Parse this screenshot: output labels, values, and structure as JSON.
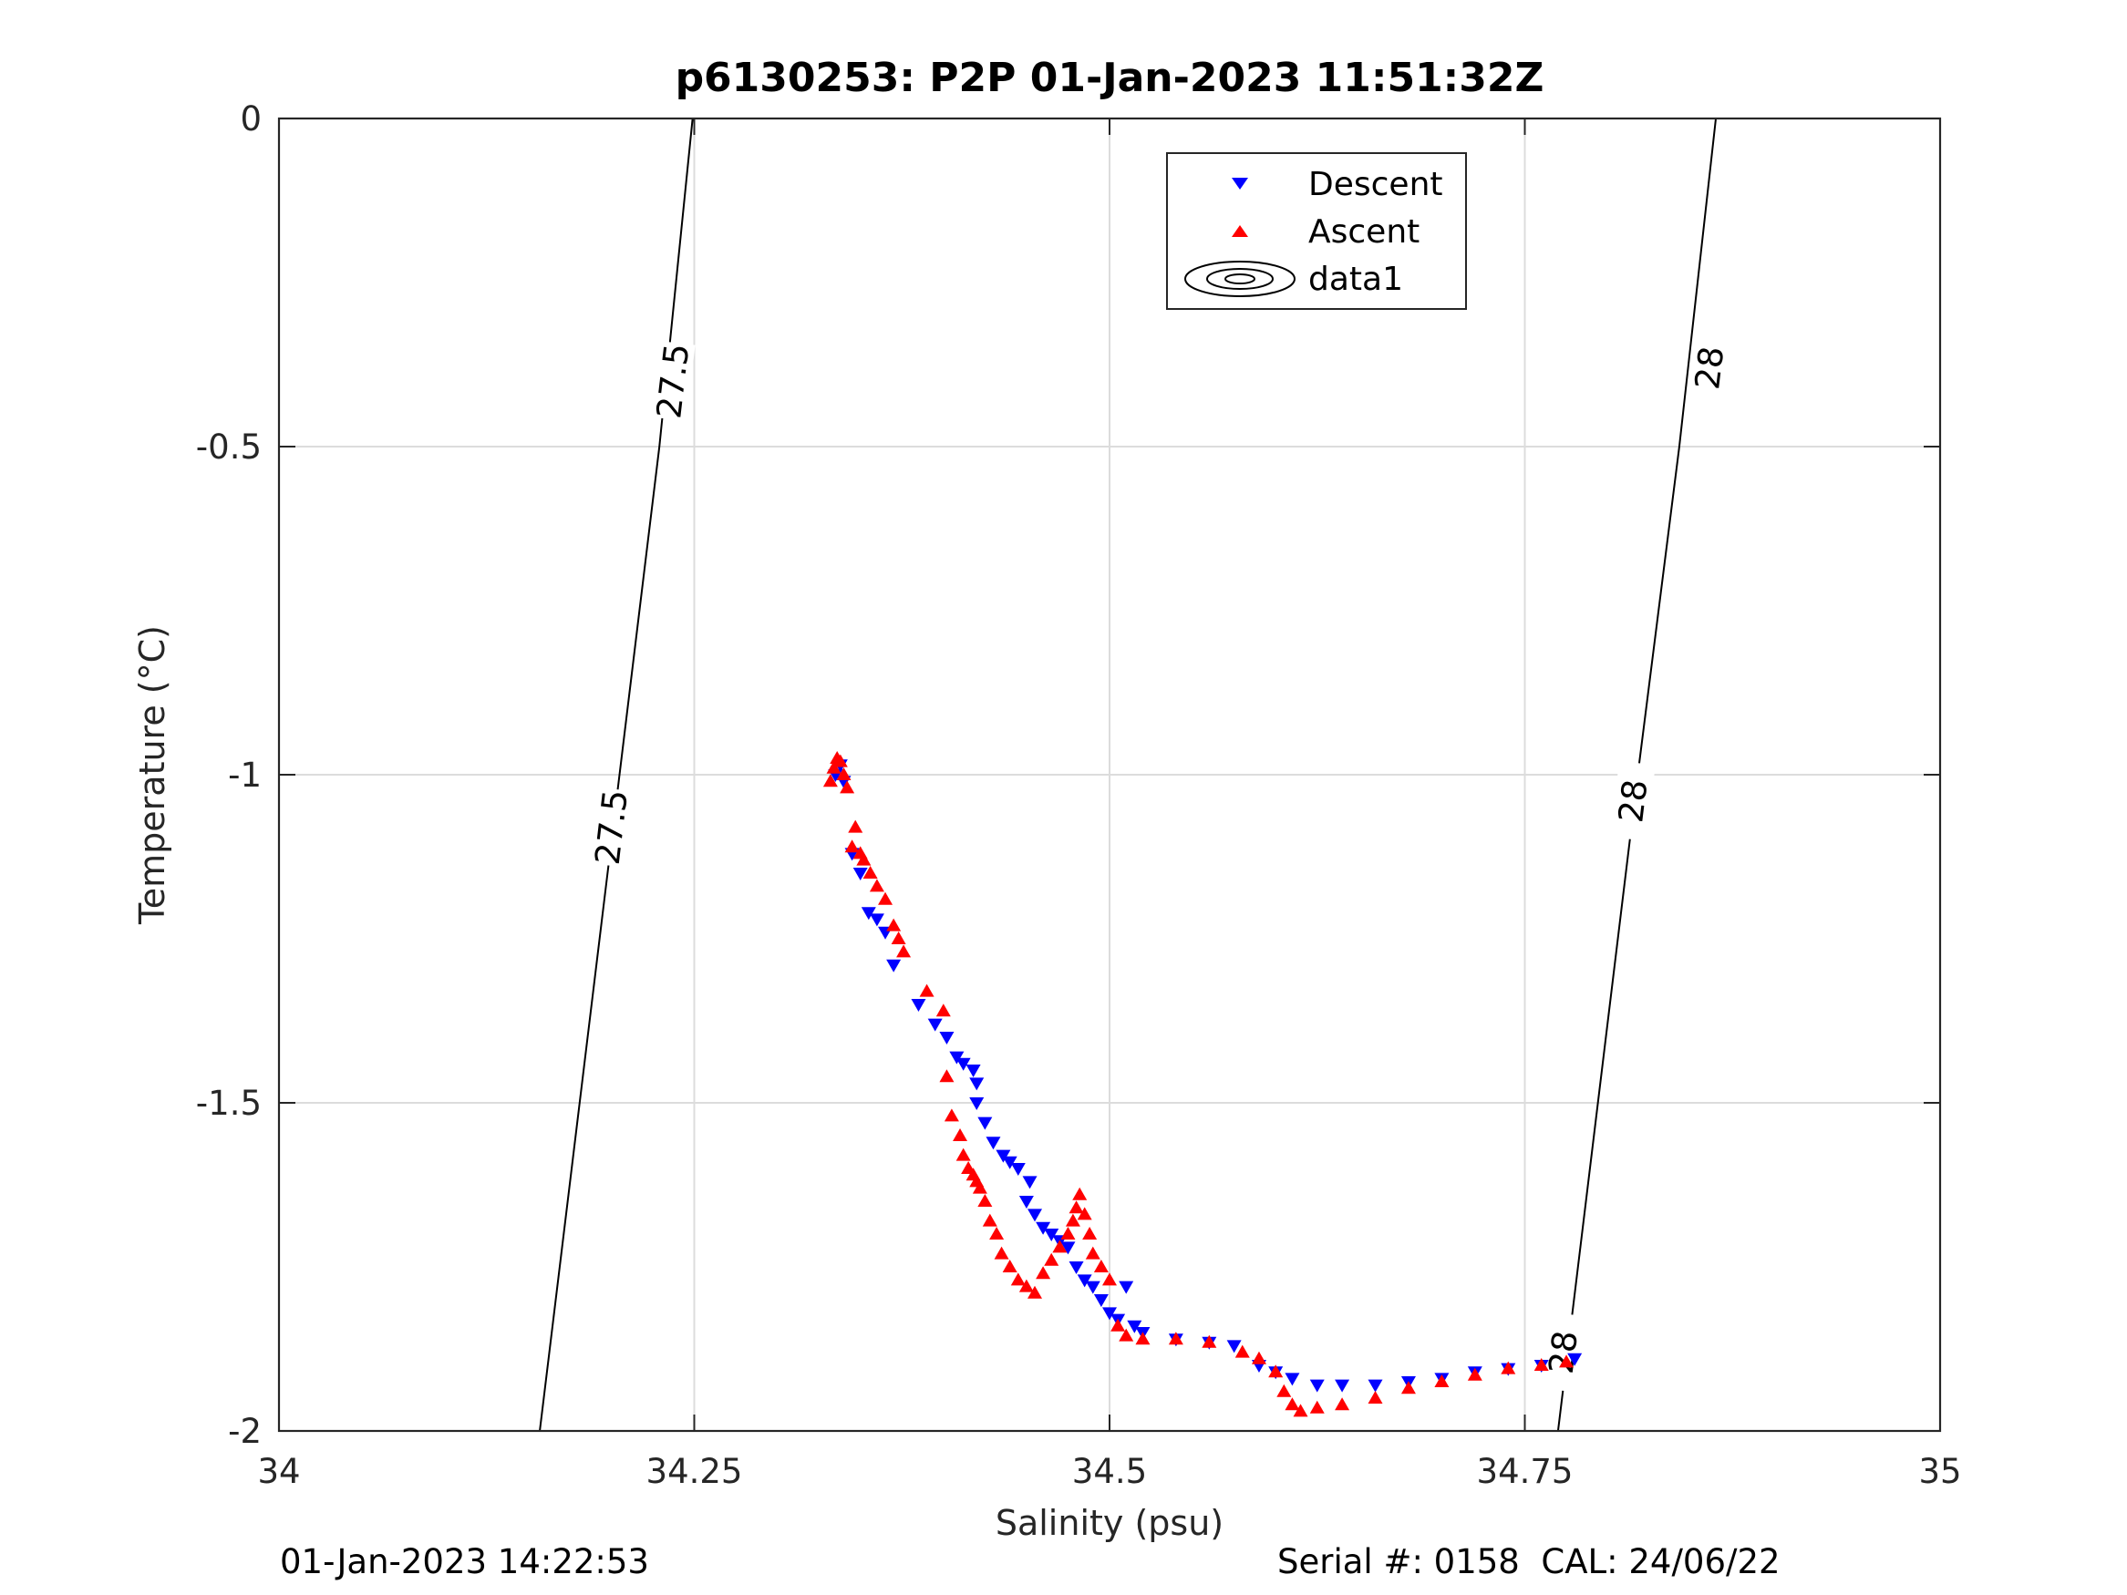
{
  "chart_data": {
    "type": "scatter",
    "title": "p6130253: P2P 01-Jan-2023 11:51:32Z",
    "xlabel": "Salinity (psu)",
    "ylabel": "Temperature (°C)",
    "xlim": [
      34,
      35
    ],
    "ylim": [
      -2,
      0
    ],
    "x_ticks": [
      34,
      34.25,
      34.5,
      34.75,
      35
    ],
    "x_tick_labels": [
      "34",
      "34.25",
      "34.5",
      "34.75",
      "35"
    ],
    "y_ticks": [
      0,
      -0.5,
      -1,
      -1.5,
      -2
    ],
    "y_tick_labels": [
      "0",
      "-0.5",
      "-1",
      "-1.5",
      "-2"
    ],
    "grid": true,
    "legend_position": "top-center",
    "legend": [
      "Descent",
      "Ascent",
      "data1"
    ],
    "series": [
      {
        "name": "Descent",
        "marker": "triangle-down",
        "color": "#0000ff",
        "points": [
          [
            34.335,
            -1.0
          ],
          [
            34.338,
            -0.985
          ],
          [
            34.34,
            -1.01
          ],
          [
            34.345,
            -1.12
          ],
          [
            34.35,
            -1.15
          ],
          [
            34.355,
            -1.21
          ],
          [
            34.36,
            -1.22
          ],
          [
            34.365,
            -1.24
          ],
          [
            34.37,
            -1.29
          ],
          [
            34.385,
            -1.35
          ],
          [
            34.395,
            -1.38
          ],
          [
            34.402,
            -1.4
          ],
          [
            34.408,
            -1.43
          ],
          [
            34.412,
            -1.44
          ],
          [
            34.418,
            -1.45
          ],
          [
            34.42,
            -1.47
          ],
          [
            34.42,
            -1.5
          ],
          [
            34.425,
            -1.53
          ],
          [
            34.43,
            -1.56
          ],
          [
            34.436,
            -1.58
          ],
          [
            34.44,
            -1.59
          ],
          [
            34.445,
            -1.6
          ],
          [
            34.452,
            -1.62
          ],
          [
            34.45,
            -1.65
          ],
          [
            34.455,
            -1.67
          ],
          [
            34.46,
            -1.69
          ],
          [
            34.465,
            -1.7
          ],
          [
            34.47,
            -1.71
          ],
          [
            34.475,
            -1.72
          ],
          [
            34.48,
            -1.75
          ],
          [
            34.485,
            -1.77
          ],
          [
            34.49,
            -1.78
          ],
          [
            34.495,
            -1.8
          ],
          [
            34.5,
            -1.82
          ],
          [
            34.505,
            -1.83
          ],
          [
            34.51,
            -1.78
          ],
          [
            34.515,
            -1.84
          ],
          [
            34.52,
            -1.85
          ],
          [
            34.54,
            -1.86
          ],
          [
            34.56,
            -1.865
          ],
          [
            34.575,
            -1.87
          ],
          [
            34.59,
            -1.9
          ],
          [
            34.6,
            -1.91
          ],
          [
            34.61,
            -1.92
          ],
          [
            34.625,
            -1.93
          ],
          [
            34.64,
            -1.93
          ],
          [
            34.66,
            -1.93
          ],
          [
            34.68,
            -1.925
          ],
          [
            34.7,
            -1.92
          ],
          [
            34.72,
            -1.91
          ],
          [
            34.74,
            -1.905
          ],
          [
            34.76,
            -1.9
          ],
          [
            34.78,
            -1.89
          ]
        ]
      },
      {
        "name": "Ascent",
        "marker": "triangle-up",
        "color": "#ff0000",
        "points": [
          [
            34.332,
            -1.01
          ],
          [
            34.334,
            -0.99
          ],
          [
            34.336,
            -0.975
          ],
          [
            34.338,
            -0.98
          ],
          [
            34.34,
            -1.0
          ],
          [
            34.342,
            -1.02
          ],
          [
            34.345,
            -1.11
          ],
          [
            34.347,
            -1.08
          ],
          [
            34.35,
            -1.12
          ],
          [
            34.352,
            -1.13
          ],
          [
            34.356,
            -1.15
          ],
          [
            34.36,
            -1.17
          ],
          [
            34.365,
            -1.19
          ],
          [
            34.37,
            -1.23
          ],
          [
            34.373,
            -1.25
          ],
          [
            34.376,
            -1.27
          ],
          [
            34.39,
            -1.33
          ],
          [
            34.4,
            -1.36
          ],
          [
            34.402,
            -1.46
          ],
          [
            34.405,
            -1.52
          ],
          [
            34.41,
            -1.55
          ],
          [
            34.412,
            -1.58
          ],
          [
            34.415,
            -1.6
          ],
          [
            34.418,
            -1.61
          ],
          [
            34.42,
            -1.62
          ],
          [
            34.422,
            -1.63
          ],
          [
            34.425,
            -1.65
          ],
          [
            34.428,
            -1.68
          ],
          [
            34.432,
            -1.7
          ],
          [
            34.435,
            -1.73
          ],
          [
            34.44,
            -1.75
          ],
          [
            34.445,
            -1.77
          ],
          [
            34.45,
            -1.78
          ],
          [
            34.455,
            -1.79
          ],
          [
            34.46,
            -1.76
          ],
          [
            34.465,
            -1.74
          ],
          [
            34.47,
            -1.72
          ],
          [
            34.475,
            -1.7
          ],
          [
            34.478,
            -1.68
          ],
          [
            34.48,
            -1.66
          ],
          [
            34.482,
            -1.64
          ],
          [
            34.485,
            -1.67
          ],
          [
            34.488,
            -1.7
          ],
          [
            34.49,
            -1.73
          ],
          [
            34.495,
            -1.75
          ],
          [
            34.5,
            -1.77
          ],
          [
            34.505,
            -1.84
          ],
          [
            34.51,
            -1.855
          ],
          [
            34.52,
            -1.86
          ],
          [
            34.54,
            -1.86
          ],
          [
            34.56,
            -1.865
          ],
          [
            34.58,
            -1.88
          ],
          [
            34.59,
            -1.89
          ],
          [
            34.6,
            -1.91
          ],
          [
            34.605,
            -1.94
          ],
          [
            34.61,
            -1.96
          ],
          [
            34.615,
            -1.97
          ],
          [
            34.625,
            -1.965
          ],
          [
            34.64,
            -1.96
          ],
          [
            34.66,
            -1.95
          ],
          [
            34.68,
            -1.935
          ],
          [
            34.7,
            -1.925
          ],
          [
            34.72,
            -1.915
          ],
          [
            34.74,
            -1.905
          ],
          [
            34.76,
            -1.9
          ],
          [
            34.775,
            -1.895
          ]
        ]
      }
    ],
    "contours": [
      {
        "label": "27.5",
        "points": [
          [
            34.157,
            -2.0
          ],
          [
            34.205,
            -1.0
          ],
          [
            34.229,
            -0.5
          ],
          [
            34.249,
            0.0
          ]
        ],
        "label_positions": [
          [
            34.2,
            -1.08
          ],
          [
            34.237,
            -0.4
          ]
        ]
      },
      {
        "label": "28",
        "points": [
          [
            34.77,
            -2.0
          ],
          [
            34.818,
            -1.0
          ],
          [
            34.843,
            -0.5
          ],
          [
            34.865,
            0.0
          ]
        ],
        "label_positions": [
          [
            34.773,
            -1.88
          ],
          [
            34.815,
            -1.04
          ],
          [
            34.861,
            -0.38
          ]
        ]
      }
    ]
  },
  "footer": {
    "left": "01-Jan-2023 14:22:53",
    "right": "Serial #: 0158  CAL: 24/06/22"
  }
}
